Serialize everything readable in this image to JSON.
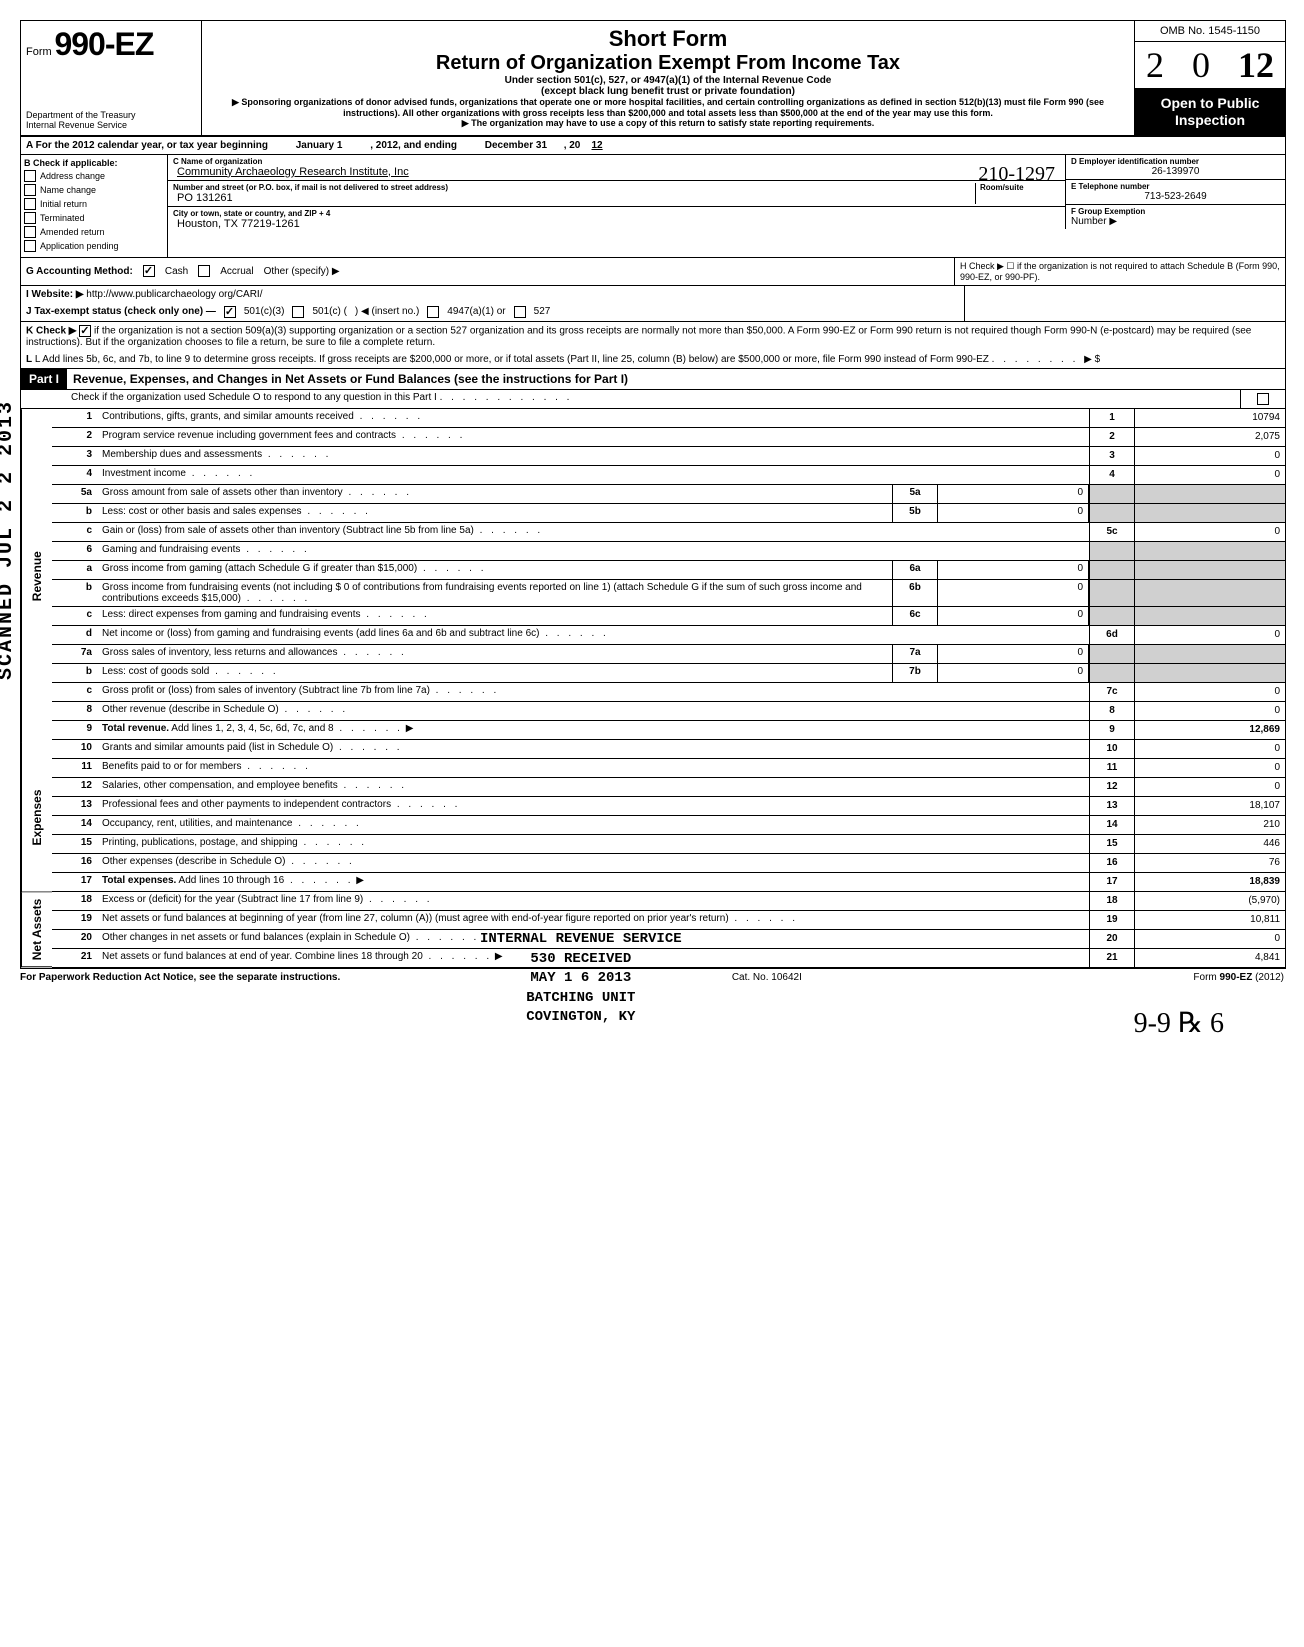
{
  "header": {
    "form_prefix": "Form",
    "form_number": "990-EZ",
    "title1": "Short Form",
    "title2": "Return of Organization Exempt From Income Tax",
    "subtitle1": "Under section 501(c), 527, or 4947(a)(1) of the Internal Revenue Code",
    "subtitle2": "(except black lung benefit trust or private foundation)",
    "sponsor_note": "▶ Sponsoring organizations of donor advised funds, organizations that operate one or more hospital facilities, and certain controlling organizations as defined in section 512(b)(13) must file Form 990 (see instructions). All other organizations with gross receipts less than $200,000 and total assets less than $500,000 at the end of the year may use this form.",
    "copy_note": "▶ The organization may have to use a copy of this return to satisfy state reporting requirements.",
    "dept1": "Department of the Treasury",
    "dept2": "Internal Revenue Service",
    "omb": "OMB No. 1545-1150",
    "year": "2012",
    "open1": "Open to Public",
    "open2": "Inspection"
  },
  "row_a": {
    "prefix": "A For the 2012 calendar year, or tax year beginning",
    "start": "January 1",
    "mid": ", 2012, and ending",
    "end": "December 31",
    "suffix": ", 20",
    "yr": "12"
  },
  "col_b": {
    "header": "B Check if applicable:",
    "items": [
      "Address change",
      "Name change",
      "Initial return",
      "Terminated",
      "Amended return",
      "Application pending"
    ]
  },
  "col_c": {
    "name_label": "C Name of organization",
    "name": "Community Archaeology Research Institute, Inc",
    "street_label": "Number and street (or P.O. box, if mail is not delivered to street address)",
    "room_label": "Room/suite",
    "street": "PO 131261",
    "city_label": "City or town, state or country, and ZIP + 4",
    "city": "Houston, TX 77219-1261"
  },
  "col_d": {
    "ein_label": "D Employer identification number",
    "ein": "26-139970",
    "phone_label": "E Telephone number",
    "phone": "713-523-2649",
    "group_label": "F  Group Exemption",
    "group2": "Number ▶"
  },
  "row_g": {
    "label": "G Accounting Method:",
    "cash": "Cash",
    "accrual": "Accrual",
    "other": "Other (specify) ▶"
  },
  "row_h": {
    "text": "H Check ▶ ☐ if the organization is not required to attach Schedule B (Form 990, 990-EZ, or 990-PF)."
  },
  "row_i": {
    "label": "I   Website: ▶",
    "value": "http://www.publicarchaeology org/CARI/"
  },
  "row_j": {
    "label": "J Tax-exempt status (check only one) —",
    "opt1": "501(c)(3)",
    "opt2": "501(c) (",
    "insert": ") ◀ (insert no.)",
    "opt3": "4947(a)(1) or",
    "opt4": "527"
  },
  "row_k": {
    "label": "K Check ▶",
    "text": "if the organization is not a section 509(a)(3) supporting organization or a section 527 organization and its gross receipts are normally not more than $50,000. A Form 990-EZ or Form 990 return is not required though Form 990-N (e-postcard) may be required (see instructions). But if the organization chooses to file a return, be sure to file a complete return."
  },
  "row_l": {
    "text": "L Add lines 5b, 6c, and 7b, to line 9 to determine gross receipts. If gross receipts are $200,000 or more, or if total assets (Part II, line 25, column (B) below) are $500,000 or more, file Form 990 instead of Form 990-EZ",
    "arrow": "▶  $"
  },
  "part1": {
    "label": "Part I",
    "title": "Revenue, Expenses, and Changes in Net Assets or Fund Balances (see the instructions for Part I)",
    "check_line": "Check if the organization used Schedule O to respond to any question in this Part I"
  },
  "side_labels": {
    "revenue": "Revenue",
    "expenses": "Expenses",
    "netassets": "Net Assets"
  },
  "lines": [
    {
      "n": "1",
      "t": "Contributions, gifts, grants, and similar amounts received",
      "en": "1",
      "ev": "10794"
    },
    {
      "n": "2",
      "t": "Program service revenue including government fees and contracts",
      "en": "2",
      "ev": "2,075"
    },
    {
      "n": "3",
      "t": "Membership dues and assessments",
      "en": "3",
      "ev": "0"
    },
    {
      "n": "4",
      "t": "Investment income",
      "en": "4",
      "ev": "0"
    },
    {
      "n": "5a",
      "t": "Gross amount from sale of assets other than inventory",
      "mn": "5a",
      "mv": "0"
    },
    {
      "n": "b",
      "t": "Less: cost or other basis and sales expenses",
      "mn": "5b",
      "mv": "0"
    },
    {
      "n": "c",
      "t": "Gain or (loss) from sale of assets other than inventory (Subtract line 5b from line 5a)",
      "en": "5c",
      "ev": "0"
    },
    {
      "n": "6",
      "t": "Gaming and fundraising events"
    },
    {
      "n": "a",
      "t": "Gross income from gaming (attach Schedule G if greater than $15,000)",
      "mn": "6a",
      "mv": "0"
    },
    {
      "n": "b",
      "t": "Gross income from fundraising events (not including  $                    0 of contributions from fundraising events reported on line 1) (attach Schedule G if the sum of such gross income and contributions exceeds $15,000)",
      "mn": "6b",
      "mv": "0"
    },
    {
      "n": "c",
      "t": "Less: direct expenses from gaming and fundraising events",
      "mn": "6c",
      "mv": "0"
    },
    {
      "n": "d",
      "t": "Net income or (loss) from gaming and fundraising events (add lines 6a and 6b and subtract line 6c)",
      "en": "6d",
      "ev": "0"
    },
    {
      "n": "7a",
      "t": "Gross sales of inventory, less returns and allowances",
      "mn": "7a",
      "mv": "0"
    },
    {
      "n": "b",
      "t": "Less: cost of goods sold",
      "mn": "7b",
      "mv": "0"
    },
    {
      "n": "c",
      "t": "Gross profit or (loss) from sales of inventory (Subtract line 7b from line 7a)",
      "en": "7c",
      "ev": "0"
    },
    {
      "n": "8",
      "t": "Other revenue (describe in Schedule O)",
      "en": "8",
      "ev": "0"
    },
    {
      "n": "9",
      "t": "Total revenue. Add lines 1, 2, 3, 4, 5c, 6d, 7c, and 8",
      "en": "9",
      "ev": "12,869",
      "bold": true,
      "arrow": true
    },
    {
      "n": "10",
      "t": "Grants and similar amounts paid (list in Schedule O)",
      "en": "10",
      "ev": "0"
    },
    {
      "n": "11",
      "t": "Benefits paid to or for members",
      "en": "11",
      "ev": "0"
    },
    {
      "n": "12",
      "t": "Salaries, other compensation, and employee benefits",
      "en": "12",
      "ev": "0"
    },
    {
      "n": "13",
      "t": "Professional fees and other payments to independent contractors",
      "en": "13",
      "ev": "18,107"
    },
    {
      "n": "14",
      "t": "Occupancy, rent, utilities, and maintenance",
      "en": "14",
      "ev": "210"
    },
    {
      "n": "15",
      "t": "Printing, publications, postage, and shipping",
      "en": "15",
      "ev": "446"
    },
    {
      "n": "16",
      "t": "Other expenses (describe in Schedule O)",
      "en": "16",
      "ev": "76"
    },
    {
      "n": "17",
      "t": "Total expenses. Add lines 10 through 16",
      "en": "17",
      "ev": "18,839",
      "bold": true,
      "arrow": true
    },
    {
      "n": "18",
      "t": "Excess or (deficit) for the year (Subtract line 17 from line 9)",
      "en": "18",
      "ev": "(5,970)"
    },
    {
      "n": "19",
      "t": "Net assets or fund balances at beginning of year (from line 27, column (A)) (must agree with end-of-year figure reported on prior year's return)",
      "en": "19",
      "ev": "10,811"
    },
    {
      "n": "20",
      "t": "Other changes in net assets or fund balances (explain in Schedule O)",
      "en": "20",
      "ev": "0"
    },
    {
      "n": "21",
      "t": "Net assets or fund balances at end of year. Combine lines 18 through 20",
      "en": "21",
      "ev": "4,841",
      "arrow": true
    }
  ],
  "footer": {
    "left": "For Paperwork Reduction Act Notice, see the separate instructions.",
    "mid": "Cat. No. 10642I",
    "right": "Form 990-EZ (2012)"
  },
  "stamp": {
    "l1": "INTERNAL REVENUE SERVICE",
    "l2": "530      RECEIVED",
    "l3": "MAY 1 6 2013",
    "l4": "BATCHING UNIT",
    "l5": "COVINGTON, KY"
  },
  "scanned": "SCANNED JUL 2 2 2013",
  "handwrite": "9-9   ℞ 6",
  "hw2": "210-1297"
}
